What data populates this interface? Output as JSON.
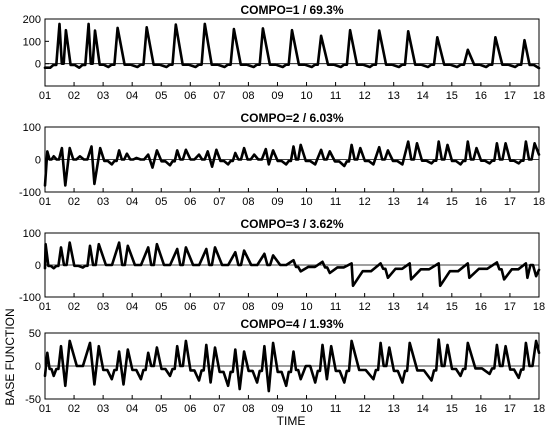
{
  "figure": {
    "xlabel": "TIME",
    "ylabel": "BASE FUNCTION"
  },
  "chart_data": [
    {
      "type": "line",
      "title": "COMPO=1 / 69.3%",
      "xlabel": "",
      "ylabel": "",
      "x_ticks": [
        "01",
        "02",
        "03",
        "04",
        "05",
        "06",
        "07",
        "08",
        "09",
        "10",
        "11",
        "12",
        "13",
        "14",
        "15",
        "16",
        "17",
        "18"
      ],
      "y_ticks": [
        200,
        100,
        0
      ],
      "xlim": [
        1,
        18
      ],
      "ylim": [
        -100,
        200
      ],
      "grid": false,
      "zero_line": true,
      "series": [
        {
          "peaks": [
            {
              "x": 1.5,
              "y": 178
            },
            {
              "x": 1.72,
              "y": 150
            },
            {
              "x": 2.5,
              "y": 178
            },
            {
              "x": 2.72,
              "y": 148
            },
            {
              "x": 3.5,
              "y": 160
            },
            {
              "x": 4.5,
              "y": 163
            },
            {
              "x": 5.5,
              "y": 175
            },
            {
              "x": 6.5,
              "y": 178
            },
            {
              "x": 7.5,
              "y": 155
            },
            {
              "x": 8.5,
              "y": 158
            },
            {
              "x": 9.5,
              "y": 150
            },
            {
              "x": 10.5,
              "y": 125
            },
            {
              "x": 11.5,
              "y": 150
            },
            {
              "x": 12.5,
              "y": 148
            },
            {
              "x": 13.5,
              "y": 145
            },
            {
              "x": 14.5,
              "y": 118
            },
            {
              "x": 15.55,
              "y": 62
            },
            {
              "x": 16.5,
              "y": 118
            },
            {
              "x": 17.5,
              "y": 105
            }
          ],
          "dips": [
            {
              "x": 1.18,
              "y": -18
            },
            {
              "x": 2.18,
              "y": -18
            },
            {
              "x": 3.18,
              "y": -15
            },
            {
              "x": 4.18,
              "y": -15
            },
            {
              "x": 5.18,
              "y": -15
            },
            {
              "x": 6.18,
              "y": -15
            },
            {
              "x": 7.18,
              "y": -15
            },
            {
              "x": 8.18,
              "y": -15
            },
            {
              "x": 9.18,
              "y": -15
            },
            {
              "x": 10.18,
              "y": -15
            },
            {
              "x": 11.18,
              "y": -15
            },
            {
              "x": 12.18,
              "y": -15
            },
            {
              "x": 13.18,
              "y": -15
            },
            {
              "x": 14.18,
              "y": -15
            },
            {
              "x": 15.18,
              "y": -15
            },
            {
              "x": 16.18,
              "y": -15
            },
            {
              "x": 17.18,
              "y": -15
            }
          ],
          "end_value": -20
        }
      ]
    },
    {
      "type": "line",
      "title": "COMPO=2 / 6.03%",
      "xlabel": "",
      "ylabel": "",
      "x_ticks": [
        "01",
        "02",
        "03",
        "04",
        "05",
        "06",
        "07",
        "08",
        "09",
        "10",
        "11",
        "12",
        "13",
        "14",
        "15",
        "16",
        "17",
        "18"
      ],
      "y_ticks": [
        100,
        0,
        -100
      ],
      "xlim": [
        1,
        18
      ],
      "ylim": [
        -100,
        100
      ],
      "grid": false,
      "zero_line": true,
      "series": [
        {
          "peaks": [
            {
              "x": 1.08,
              "y": 25
            },
            {
              "x": 1.3,
              "y": 10
            },
            {
              "x": 1.58,
              "y": 35
            },
            {
              "x": 1.85,
              "y": 35
            },
            {
              "x": 2.2,
              "y": 10
            },
            {
              "x": 2.6,
              "y": 40
            },
            {
              "x": 2.9,
              "y": 35
            },
            {
              "x": 3.55,
              "y": 28
            },
            {
              "x": 3.82,
              "y": 18
            },
            {
              "x": 4.15,
              "y": 5
            },
            {
              "x": 4.55,
              "y": 15
            },
            {
              "x": 4.85,
              "y": 28
            },
            {
              "x": 5.55,
              "y": 28
            },
            {
              "x": 5.85,
              "y": 30
            },
            {
              "x": 6.3,
              "y": 15
            },
            {
              "x": 6.6,
              "y": 25
            },
            {
              "x": 6.9,
              "y": 30
            },
            {
              "x": 7.55,
              "y": 20
            },
            {
              "x": 7.85,
              "y": 35
            },
            {
              "x": 8.2,
              "y": 15
            },
            {
              "x": 8.6,
              "y": 32
            },
            {
              "x": 8.85,
              "y": 28
            },
            {
              "x": 9.55,
              "y": 40
            },
            {
              "x": 9.8,
              "y": 45
            },
            {
              "x": 10.5,
              "y": 30
            },
            {
              "x": 10.8,
              "y": 25
            },
            {
              "x": 11.55,
              "y": 45
            },
            {
              "x": 11.85,
              "y": 35
            },
            {
              "x": 12.5,
              "y": 38
            },
            {
              "x": 12.8,
              "y": 28
            },
            {
              "x": 13.5,
              "y": 55
            },
            {
              "x": 13.8,
              "y": 50
            },
            {
              "x": 14.55,
              "y": 55
            },
            {
              "x": 14.85,
              "y": 45
            },
            {
              "x": 15.55,
              "y": 55
            },
            {
              "x": 15.85,
              "y": 35
            },
            {
              "x": 16.55,
              "y": 50
            },
            {
              "x": 16.85,
              "y": 50
            },
            {
              "x": 17.55,
              "y": 55
            },
            {
              "x": 17.85,
              "y": 50
            }
          ],
          "dips": [
            {
              "x": 1.7,
              "y": -80
            },
            {
              "x": 2.7,
              "y": -75
            },
            {
              "x": 3.3,
              "y": -15
            },
            {
              "x": 4.7,
              "y": -25
            },
            {
              "x": 5.3,
              "y": -18
            },
            {
              "x": 6.75,
              "y": -22
            },
            {
              "x": 7.3,
              "y": -15
            },
            {
              "x": 8.7,
              "y": -15
            },
            {
              "x": 9.3,
              "y": -15
            },
            {
              "x": 10.3,
              "y": -15
            },
            {
              "x": 11.3,
              "y": -20
            },
            {
              "x": 12.3,
              "y": -15
            },
            {
              "x": 13.3,
              "y": -15
            },
            {
              "x": 14.3,
              "y": -12
            },
            {
              "x": 15.3,
              "y": -15
            },
            {
              "x": 16.3,
              "y": -12
            },
            {
              "x": 17.3,
              "y": -12
            }
          ],
          "end_value": 15
        }
      ]
    },
    {
      "type": "line",
      "title": "COMPO=3 / 3.62%",
      "xlabel": "",
      "ylabel": "",
      "x_ticks": [
        "01",
        "02",
        "03",
        "04",
        "05",
        "06",
        "07",
        "08",
        "09",
        "10",
        "11",
        "12",
        "13",
        "14",
        "15",
        "16",
        "17",
        "18"
      ],
      "y_ticks": [
        100,
        0,
        -100
      ],
      "xlim": [
        1,
        18
      ],
      "ylim": [
        -100,
        100
      ],
      "grid": false,
      "zero_line": true,
      "series": [
        {
          "peaks": [
            {
              "x": 1.02,
              "y": 65
            },
            {
              "x": 1.55,
              "y": 55
            },
            {
              "x": 1.85,
              "y": 70
            },
            {
              "x": 2.55,
              "y": 60
            },
            {
              "x": 2.85,
              "y": 65
            },
            {
              "x": 3.55,
              "y": 70
            },
            {
              "x": 3.85,
              "y": 60
            },
            {
              "x": 4.55,
              "y": 55
            },
            {
              "x": 4.85,
              "y": 65
            },
            {
              "x": 5.55,
              "y": 50
            },
            {
              "x": 5.85,
              "y": 55
            },
            {
              "x": 6.55,
              "y": 50
            },
            {
              "x": 6.85,
              "y": 55
            },
            {
              "x": 7.55,
              "y": 40
            },
            {
              "x": 7.85,
              "y": 45
            },
            {
              "x": 8.55,
              "y": 35
            },
            {
              "x": 8.85,
              "y": 30
            },
            {
              "x": 9.55,
              "y": 15
            },
            {
              "x": 10.55,
              "y": 10
            },
            {
              "x": 11.55,
              "y": 5
            },
            {
              "x": 12.55,
              "y": 5
            },
            {
              "x": 13.55,
              "y": 5
            },
            {
              "x": 14.55,
              "y": 5
            },
            {
              "x": 15.55,
              "y": 5
            },
            {
              "x": 16.55,
              "y": 8
            },
            {
              "x": 17.55,
              "y": 5
            }
          ],
          "dips": [
            {
              "x": 1.3,
              "y": -10
            },
            {
              "x": 2.3,
              "y": -8
            },
            {
              "x": 9.8,
              "y": -20
            },
            {
              "x": 10.8,
              "y": -25
            },
            {
              "x": 11.6,
              "y": -65
            },
            {
              "x": 12.8,
              "y": -40
            },
            {
              "x": 13.6,
              "y": -45
            },
            {
              "x": 14.6,
              "y": -65
            },
            {
              "x": 15.6,
              "y": -40
            },
            {
              "x": 16.8,
              "y": -45
            },
            {
              "x": 17.6,
              "y": -40
            },
            {
              "x": 17.9,
              "y": -35
            }
          ],
          "end_value": -15
        }
      ]
    },
    {
      "type": "line",
      "title": "COMPO=4 / 1.93%",
      "xlabel": "",
      "ylabel": "",
      "x_ticks": [
        "01",
        "02",
        "03",
        "04",
        "05",
        "06",
        "07",
        "08",
        "09",
        "10",
        "11",
        "12",
        "13",
        "14",
        "15",
        "16",
        "17",
        "18"
      ],
      "y_ticks": [
        50,
        0,
        -50
      ],
      "xlim": [
        1,
        18
      ],
      "ylim": [
        -50,
        50
      ],
      "grid": false,
      "zero_line": true,
      "series": [
        {
          "peaks": [
            {
              "x": 1.08,
              "y": 20
            },
            {
              "x": 1.55,
              "y": 30
            },
            {
              "x": 1.85,
              "y": 38
            },
            {
              "x": 2.55,
              "y": 35
            },
            {
              "x": 2.85,
              "y": 30
            },
            {
              "x": 3.55,
              "y": 22
            },
            {
              "x": 3.85,
              "y": 25
            },
            {
              "x": 4.55,
              "y": 20
            },
            {
              "x": 4.85,
              "y": 28
            },
            {
              "x": 5.55,
              "y": 30
            },
            {
              "x": 5.85,
              "y": 38
            },
            {
              "x": 6.55,
              "y": 32
            },
            {
              "x": 6.85,
              "y": 28
            },
            {
              "x": 7.55,
              "y": 25
            },
            {
              "x": 7.85,
              "y": 22
            },
            {
              "x": 8.55,
              "y": 30
            },
            {
              "x": 8.85,
              "y": 35
            },
            {
              "x": 9.55,
              "y": 22
            },
            {
              "x": 10.55,
              "y": 32
            },
            {
              "x": 10.85,
              "y": 30
            },
            {
              "x": 11.55,
              "y": 38
            },
            {
              "x": 12.55,
              "y": 35
            },
            {
              "x": 12.85,
              "y": 28
            },
            {
              "x": 13.55,
              "y": 35
            },
            {
              "x": 14.55,
              "y": 40
            },
            {
              "x": 14.85,
              "y": 32
            },
            {
              "x": 15.55,
              "y": 35
            },
            {
              "x": 16.55,
              "y": 32
            },
            {
              "x": 16.85,
              "y": 30
            },
            {
              "x": 17.55,
              "y": 35
            },
            {
              "x": 17.9,
              "y": 38
            }
          ],
          "dips": [
            {
              "x": 1.3,
              "y": -15
            },
            {
              "x": 1.7,
              "y": -30
            },
            {
              "x": 2.7,
              "y": -28
            },
            {
              "x": 3.3,
              "y": -20
            },
            {
              "x": 3.7,
              "y": -28
            },
            {
              "x": 4.3,
              "y": -20
            },
            {
              "x": 5.3,
              "y": -15
            },
            {
              "x": 6.3,
              "y": -22
            },
            {
              "x": 6.7,
              "y": -25
            },
            {
              "x": 7.3,
              "y": -30
            },
            {
              "x": 7.7,
              "y": -35
            },
            {
              "x": 8.3,
              "y": -25
            },
            {
              "x": 8.7,
              "y": -38
            },
            {
              "x": 9.3,
              "y": -30
            },
            {
              "x": 9.8,
              "y": -20
            },
            {
              "x": 10.3,
              "y": -25
            },
            {
              "x": 10.7,
              "y": -20
            },
            {
              "x": 11.3,
              "y": -25
            },
            {
              "x": 12.3,
              "y": -20
            },
            {
              "x": 13.3,
              "y": -25
            },
            {
              "x": 14.3,
              "y": -22
            },
            {
              "x": 15.3,
              "y": -15
            },
            {
              "x": 16.3,
              "y": -12
            },
            {
              "x": 17.3,
              "y": -18
            }
          ],
          "end_value": 20
        }
      ]
    }
  ]
}
